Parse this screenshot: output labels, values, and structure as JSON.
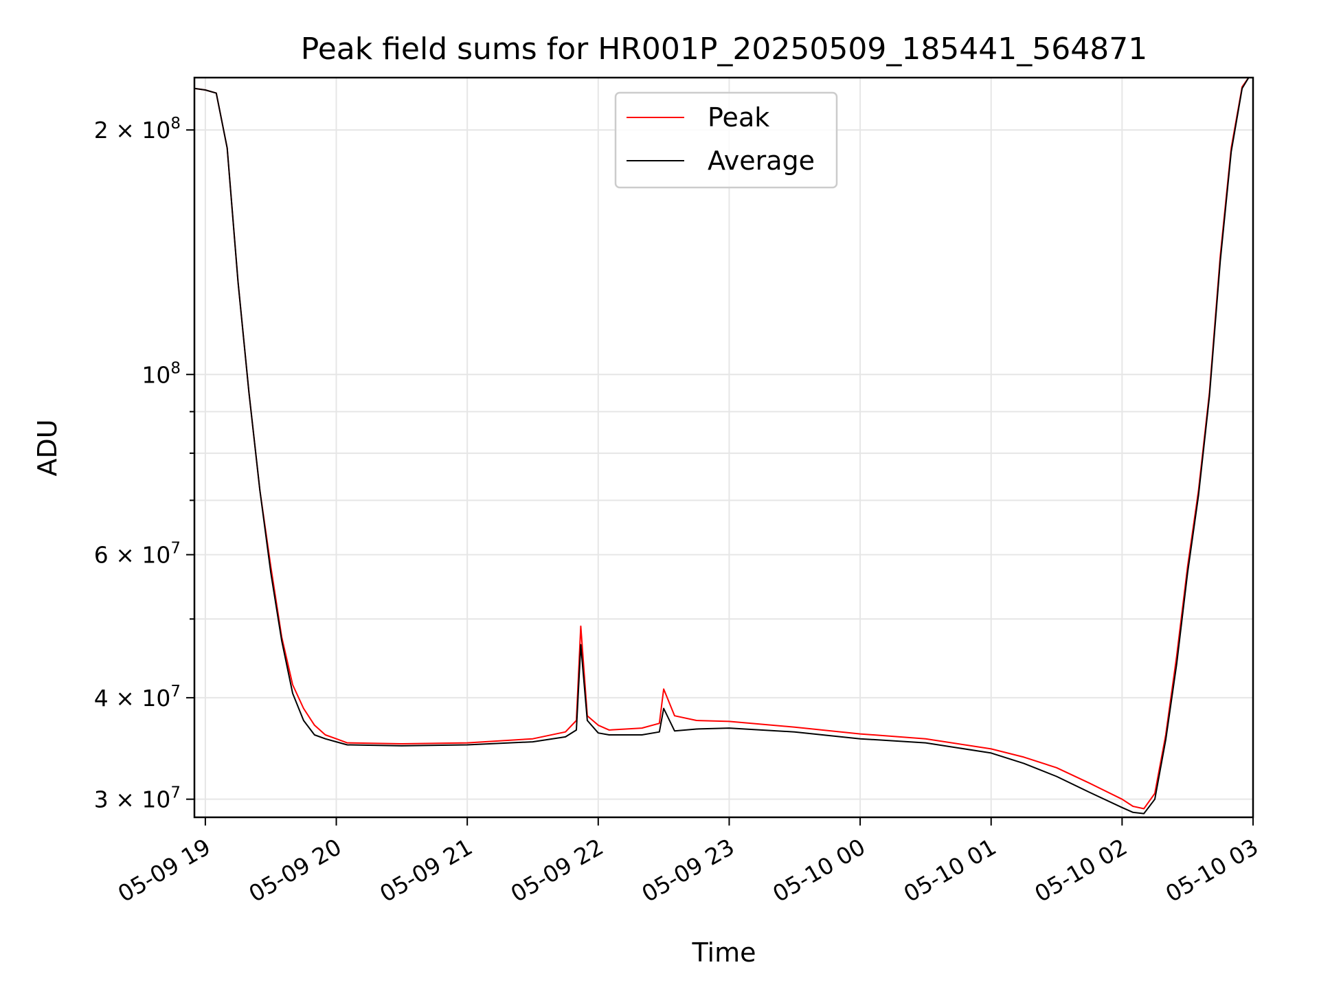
{
  "chart_data": {
    "type": "line",
    "title": "Peak field sums for HR001P_20250509_185441_564871",
    "xlabel": "Time",
    "ylabel": "ADU",
    "yscale": "log",
    "grid": true,
    "legend_position": "top-center",
    "xlim": [
      "2025-05-09 18:55",
      "2025-05-10 03:00"
    ],
    "ylim": [
      28500000,
      232000000
    ],
    "x_ticks": [
      {
        "value": "2025-05-09 19:00",
        "label": "05-09 19"
      },
      {
        "value": "2025-05-09 20:00",
        "label": "05-09 20"
      },
      {
        "value": "2025-05-09 21:00",
        "label": "05-09 21"
      },
      {
        "value": "2025-05-09 22:00",
        "label": "05-09 22"
      },
      {
        "value": "2025-05-09 23:00",
        "label": "05-09 23"
      },
      {
        "value": "2025-05-10 00:00",
        "label": "05-10 00"
      },
      {
        "value": "2025-05-10 01:00",
        "label": "05-10 01"
      },
      {
        "value": "2025-05-10 02:00",
        "label": "05-10 02"
      },
      {
        "value": "2025-05-10 03:00",
        "label": "05-10 03"
      }
    ],
    "y_ticks": [
      {
        "value": 30000000,
        "base": "3 × 10",
        "exp": "7"
      },
      {
        "value": 40000000,
        "base": "4 × 10",
        "exp": "7"
      },
      {
        "value": 60000000,
        "base": "6 × 10",
        "exp": "7"
      },
      {
        "value": 100000000,
        "base": "10",
        "exp": "8"
      },
      {
        "value": 200000000,
        "base": "2 × 10",
        "exp": "8"
      }
    ],
    "y_minor_ticks": [
      50000000,
      70000000,
      80000000,
      90000000
    ],
    "series": [
      {
        "name": "Peak",
        "color": "#ff0000",
        "x": [
          "2025-05-09 18:55",
          "2025-05-09 19:00",
          "2025-05-09 19:05",
          "2025-05-09 19:10",
          "2025-05-09 19:15",
          "2025-05-09 19:20",
          "2025-05-09 19:25",
          "2025-05-09 19:30",
          "2025-05-09 19:35",
          "2025-05-09 19:40",
          "2025-05-09 19:45",
          "2025-05-09 19:50",
          "2025-05-09 19:55",
          "2025-05-09 20:00",
          "2025-05-09 20:05",
          "2025-05-09 20:30",
          "2025-05-09 21:00",
          "2025-05-09 21:30",
          "2025-05-09 21:45",
          "2025-05-09 21:50",
          "2025-05-09 21:52",
          "2025-05-09 21:55",
          "2025-05-09 22:00",
          "2025-05-09 22:05",
          "2025-05-09 22:20",
          "2025-05-09 22:28",
          "2025-05-09 22:30",
          "2025-05-09 22:35",
          "2025-05-09 22:45",
          "2025-05-09 23:00",
          "2025-05-09 23:30",
          "2025-05-10 00:00",
          "2025-05-10 00:30",
          "2025-05-10 01:00",
          "2025-05-10 01:15",
          "2025-05-10 01:30",
          "2025-05-10 01:45",
          "2025-05-10 02:00",
          "2025-05-10 02:05",
          "2025-05-10 02:10",
          "2025-05-10 02:15",
          "2025-05-10 02:20",
          "2025-05-10 02:25",
          "2025-05-10 02:30",
          "2025-05-10 02:35",
          "2025-05-10 02:40",
          "2025-05-10 02:45",
          "2025-05-10 02:50",
          "2025-05-10 02:55",
          "2025-05-10 02:58"
        ],
        "values": [
          225000000,
          224000000,
          222000000,
          190000000,
          130000000,
          95000000,
          72000000,
          58000000,
          47500000,
          41500000,
          38800000,
          37000000,
          36000000,
          35600000,
          35200000,
          35100000,
          35200000,
          35600000,
          36300000,
          37500000,
          49000000,
          38000000,
          37000000,
          36500000,
          36700000,
          37200000,
          41000000,
          38000000,
          37500000,
          37400000,
          36800000,
          36100000,
          35600000,
          34600000,
          33800000,
          32800000,
          31400000,
          30000000,
          29400000,
          29200000,
          30500000,
          36000000,
          45000000,
          58000000,
          72000000,
          95000000,
          140000000,
          190000000,
          226000000,
          232000000
        ]
      },
      {
        "name": "Average",
        "color": "#000000",
        "x": [
          "2025-05-09 18:55",
          "2025-05-09 19:00",
          "2025-05-09 19:05",
          "2025-05-09 19:10",
          "2025-05-09 19:15",
          "2025-05-09 19:20",
          "2025-05-09 19:25",
          "2025-05-09 19:30",
          "2025-05-09 19:35",
          "2025-05-09 19:40",
          "2025-05-09 19:45",
          "2025-05-09 19:50",
          "2025-05-09 19:55",
          "2025-05-09 20:00",
          "2025-05-09 20:05",
          "2025-05-09 20:30",
          "2025-05-09 21:00",
          "2025-05-09 21:30",
          "2025-05-09 21:45",
          "2025-05-09 21:50",
          "2025-05-09 21:52",
          "2025-05-09 21:55",
          "2025-05-09 22:00",
          "2025-05-09 22:05",
          "2025-05-09 22:20",
          "2025-05-09 22:28",
          "2025-05-09 22:30",
          "2025-05-09 22:35",
          "2025-05-09 22:45",
          "2025-05-09 23:00",
          "2025-05-09 23:30",
          "2025-05-10 00:00",
          "2025-05-10 00:30",
          "2025-05-10 01:00",
          "2025-05-10 01:15",
          "2025-05-10 01:30",
          "2025-05-10 01:45",
          "2025-05-10 02:00",
          "2025-05-10 02:05",
          "2025-05-10 02:10",
          "2025-05-10 02:15",
          "2025-05-10 02:20",
          "2025-05-10 02:25",
          "2025-05-10 02:30",
          "2025-05-10 02:35",
          "2025-05-10 02:40",
          "2025-05-10 02:45",
          "2025-05-10 02:50",
          "2025-05-10 02:55",
          "2025-05-10 02:58"
        ],
        "values": [
          225000000,
          224000000,
          222000000,
          190000000,
          130000000,
          95000000,
          72000000,
          57000000,
          47000000,
          40500000,
          37500000,
          36000000,
          35600000,
          35300000,
          35000000,
          34900000,
          35000000,
          35300000,
          35800000,
          36500000,
          46500000,
          37500000,
          36200000,
          36000000,
          36000000,
          36300000,
          38800000,
          36400000,
          36600000,
          36700000,
          36300000,
          35600000,
          35200000,
          34200000,
          33200000,
          32000000,
          30600000,
          29300000,
          28900000,
          28800000,
          30000000,
          35500000,
          44000000,
          57000000,
          71000000,
          94000000,
          138000000,
          188000000,
          225000000,
          232000000
        ]
      }
    ]
  }
}
